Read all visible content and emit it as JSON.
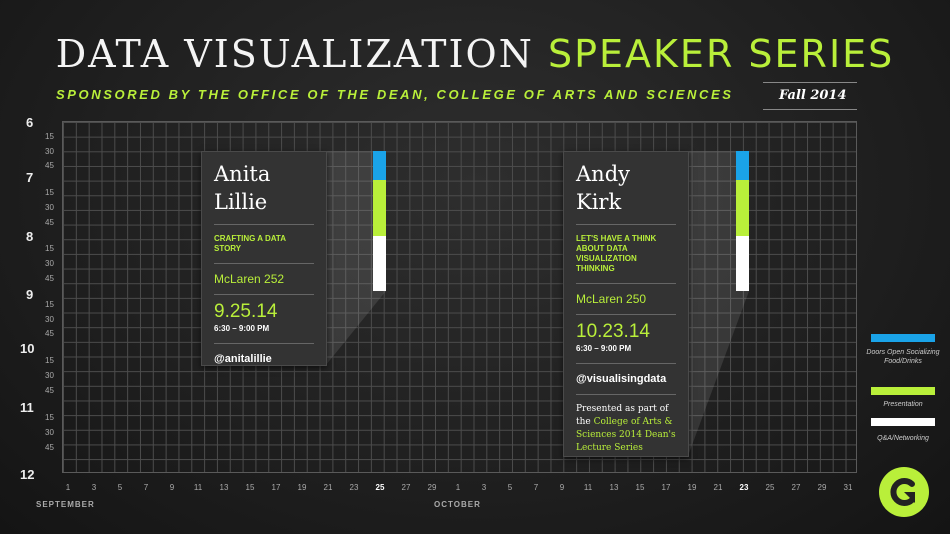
{
  "header": {
    "title_part1": "DATA VISUALIZATION",
    "title_part2": "SPEAKER SERIES",
    "subtitle": "SPONSORED BY THE OFFICE OF THE DEAN, COLLEGE OF ARTS AND SCIENCES",
    "season": "Fall 2014"
  },
  "time_axis": {
    "hours": [
      "6",
      "7",
      "8",
      "9",
      "10",
      "11",
      "12"
    ],
    "quarters": [
      "15",
      "30",
      "45"
    ]
  },
  "day_axis": {
    "days": [
      "1",
      "3",
      "5",
      "7",
      "9",
      "11",
      "13",
      "15",
      "17",
      "19",
      "21",
      "23",
      "25",
      "27",
      "29",
      "1",
      "3",
      "5",
      "7",
      "9",
      "11",
      "13",
      "15",
      "17",
      "19",
      "21",
      "23",
      "25",
      "27",
      "29",
      "31"
    ],
    "highlighted": [
      "25",
      "23"
    ],
    "months": [
      "SEPTEMBER",
      "OCTOBER"
    ]
  },
  "colors": {
    "accent": "#b9ef3a",
    "doors": "#1aa3e8",
    "presentation": "#b9ef3a",
    "qa": "#ffffff"
  },
  "events": [
    {
      "name_line1": "Anita",
      "name_line2": "Lillie",
      "talk": "CRAFTING A DATA STORY",
      "room": "McLaren 252",
      "date": "9.25.14",
      "time": "6:30 – 9:00 PM",
      "handle": "@anitalillie"
    },
    {
      "name_line1": "Andy",
      "name_line2": "Kirk",
      "talk": "LET'S HAVE A THINK ABOUT DATA VISUALIZATION THINKING",
      "room": "McLaren 250",
      "date": "10.23.14",
      "time": "6:30 – 9:00 PM",
      "handle": "@visualisingdata",
      "note_pre": "Presented as part of the ",
      "note_hl": "College of Arts & Sciences 2014 Dean's Lecture Series"
    }
  ],
  "legend": {
    "doors": "Doors Open Socializing Food/Drinks",
    "presentation": "Presentation",
    "qa": "Q&A/Networking"
  },
  "logo_icon": "c-logo-icon"
}
